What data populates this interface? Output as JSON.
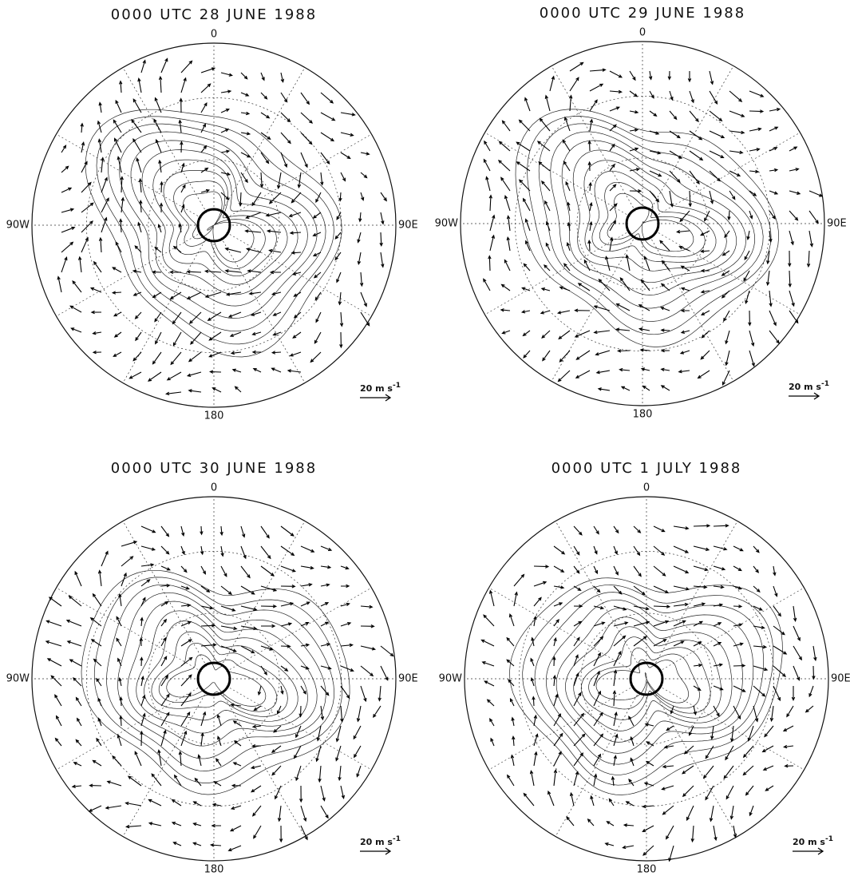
{
  "panels": [
    {
      "title": "0000 UTC 28 JUNE 1988",
      "labels": {
        "top": "0",
        "bottom": "180",
        "left": "90W",
        "right": "90E"
      },
      "scale": {
        "text": "20 m s",
        "exponent": "-1"
      }
    },
    {
      "title": "0000 UTC 29 JUNE 1988",
      "labels": {
        "top": "0",
        "bottom": "180",
        "left": "90W",
        "right": "90E"
      },
      "scale": {
        "text": "20 m s",
        "exponent": "-1"
      }
    },
    {
      "title": "0000 UTC 30 JUNE 1988",
      "labels": {
        "top": "0",
        "bottom": "180",
        "left": "90W",
        "right": "90E"
      },
      "scale": {
        "text": "20 m s",
        "exponent": "-1"
      }
    },
    {
      "title": "0000 UTC 1 JULY 1988",
      "labels": {
        "top": "0",
        "bottom": "180",
        "left": "90W",
        "right": "90E"
      },
      "scale": {
        "text": "20 m s",
        "exponent": "-1"
      }
    }
  ]
}
